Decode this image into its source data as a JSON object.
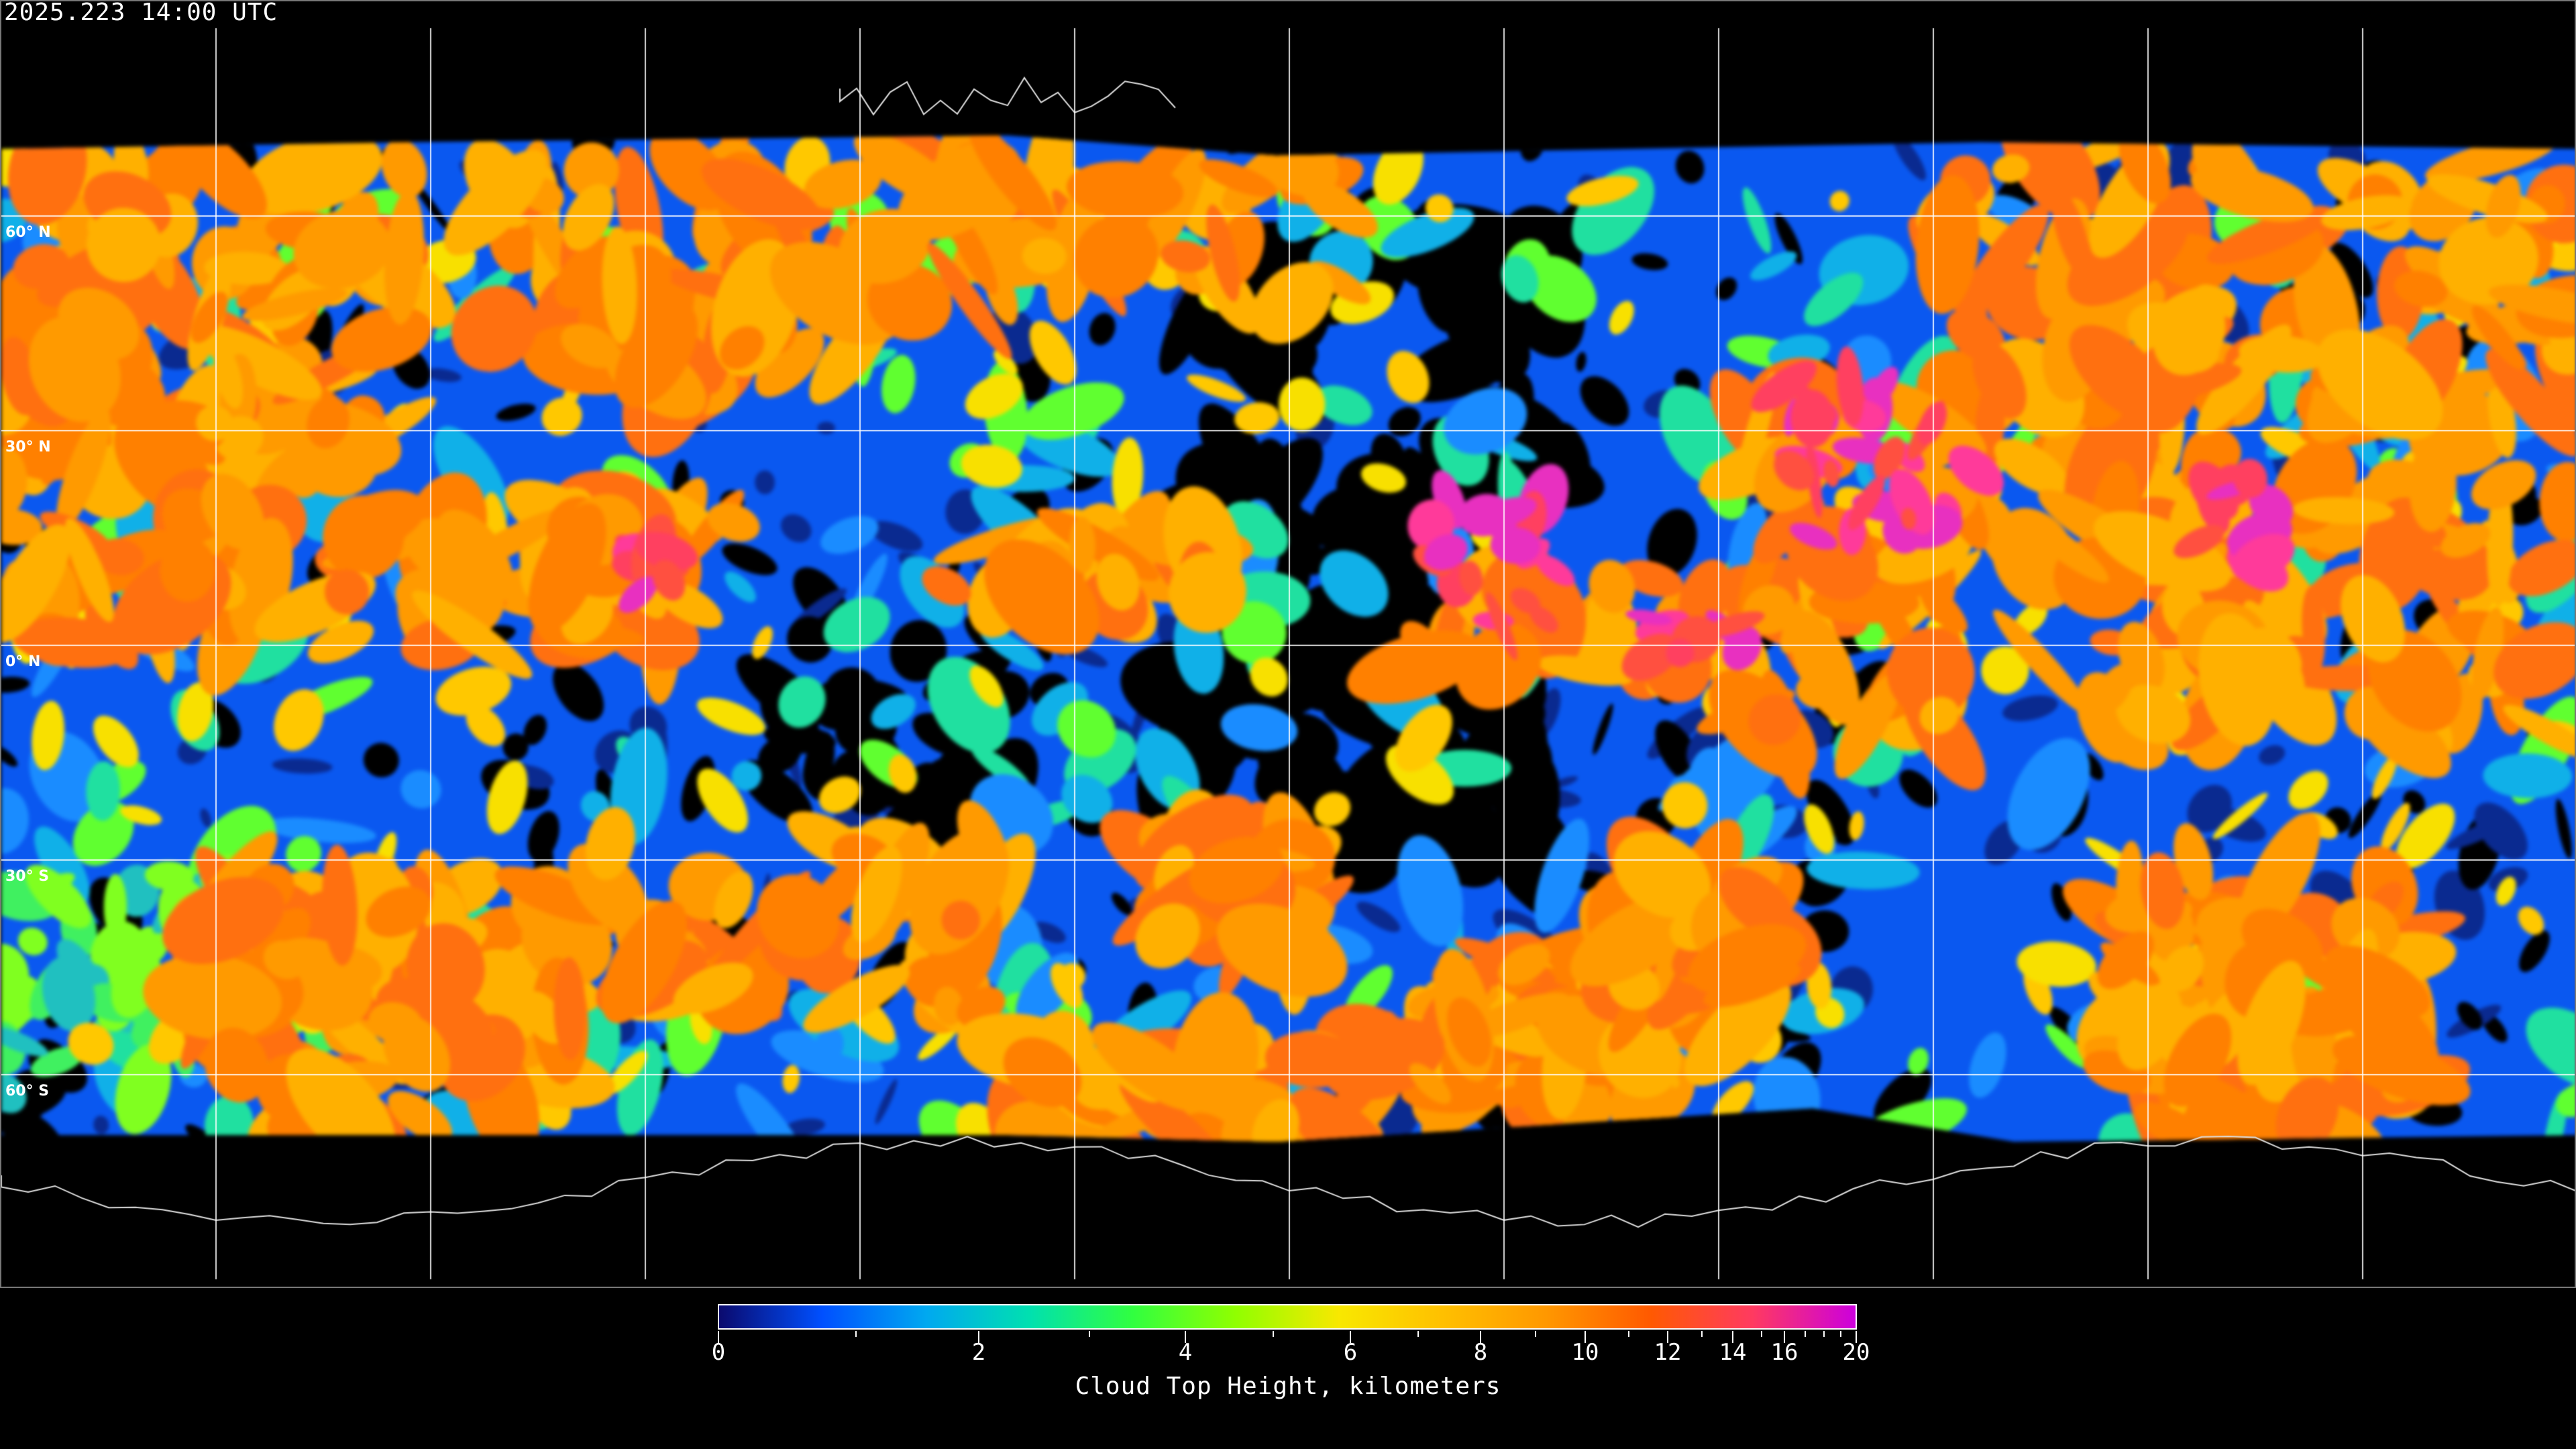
{
  "header": {
    "timestamp": "2025.223 14:00 UTC"
  },
  "map": {
    "projection": "equirectangular",
    "gridline_spacing_degrees": 30,
    "lat_labels": [
      "60° N",
      "30° N",
      "0° N",
      "30° S",
      "60° S"
    ],
    "gridline_color": "#ffffff",
    "coastline_color": "#ffffff"
  },
  "colorbar": {
    "caption": "Cloud Top Height, kilometers",
    "tick_labels": [
      "0",
      "2",
      "4",
      "6",
      "8",
      "10",
      "12",
      "14",
      "16",
      "20"
    ],
    "colors": [
      "#0a0a6e",
      "#0050ff",
      "#00a8f0",
      "#00e0b0",
      "#30ff40",
      "#90ff00",
      "#f8e800",
      "#ffc000",
      "#ff9800",
      "#ff5a00",
      "#ff3a60",
      "#cc00dd"
    ]
  }
}
